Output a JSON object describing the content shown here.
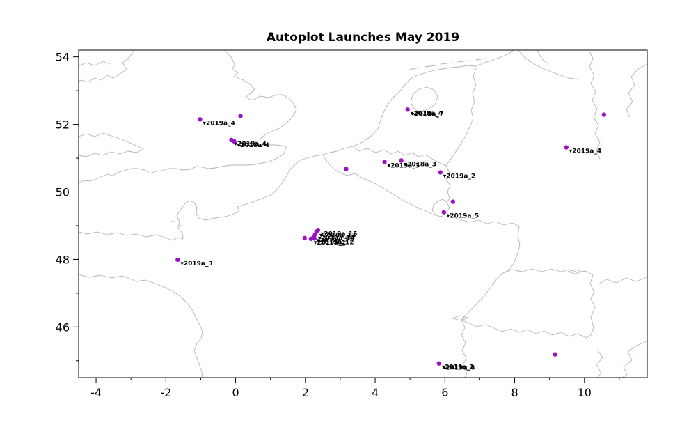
{
  "title": "Autoplot Launches May 2019",
  "colors": {
    "background": "#ffffff",
    "marker": "#9912c4",
    "coastline": "#b3b3b3",
    "axis": "#000000",
    "point_label_text": "#000000"
  },
  "icons": {
    "label_pointer": "▾"
  },
  "chart_data": {
    "type": "scatter",
    "title": "Autoplot Launches May 2019",
    "xlabel": "",
    "ylabel": "",
    "xlim": [
      -4.5,
      11.8
    ],
    "ylim": [
      44.5,
      54.2
    ],
    "x_ticks_major": [
      -4,
      -2,
      0,
      2,
      4,
      6,
      8,
      10
    ],
    "x_ticks_minor": [
      -3,
      -1,
      1,
      3,
      5,
      7,
      9,
      11
    ],
    "y_ticks_major": [
      46,
      48,
      50,
      52,
      54
    ],
    "y_ticks_minor": [
      45,
      47,
      49,
      51,
      53
    ],
    "grid": false,
    "legend": null,
    "background_map": "Western Europe coastlines and borders (UK, France, Belgium, Netherlands, Germany, Switzerland)",
    "marker": {
      "shape": "circle",
      "color": "#9912c4",
      "radius": 3.2
    },
    "points": [
      {
        "lon": -1.02,
        "lat": 52.15,
        "labels": [
          "2019a_4"
        ]
      },
      {
        "lon": 0.14,
        "lat": 52.25,
        "labels": []
      },
      {
        "lon": -0.12,
        "lat": 51.54,
        "labels": [
          "2019a_4"
        ]
      },
      {
        "lon": -0.04,
        "lat": 51.5,
        "labels": [
          "2018a_4"
        ]
      },
      {
        "lon": 3.17,
        "lat": 50.68,
        "labels": []
      },
      {
        "lon": 4.27,
        "lat": 50.89,
        "labels": [
          "2019a_3"
        ]
      },
      {
        "lon": 4.75,
        "lat": 50.93,
        "labels": [
          "2018a_3"
        ]
      },
      {
        "lon": 5.87,
        "lat": 50.58,
        "labels": [
          "2019a_2"
        ]
      },
      {
        "lon": 6.23,
        "lat": 49.71,
        "labels": []
      },
      {
        "lon": 5.97,
        "lat": 49.4,
        "labels": [
          "2019a_5"
        ]
      },
      {
        "lon": 1.98,
        "lat": 48.63,
        "labels": []
      },
      {
        "lon": 2.16,
        "lat": 48.61,
        "labels": [
          "2019a_1"
        ]
      },
      {
        "lon": 2.26,
        "lat": 48.62,
        "labels": [
          "2019a_12"
        ]
      },
      {
        "lon": 2.24,
        "lat": 48.67,
        "labels": [
          "2019a_11"
        ]
      },
      {
        "lon": 2.28,
        "lat": 48.74,
        "labels": [
          "2019a_14"
        ]
      },
      {
        "lon": 2.32,
        "lat": 48.82,
        "labels": [
          "2019a_13"
        ]
      },
      {
        "lon": 2.36,
        "lat": 48.87,
        "labels": [
          "2019a_15"
        ]
      },
      {
        "lon": -1.66,
        "lat": 47.99,
        "labels": [
          "2019a_3"
        ]
      },
      {
        "lon": 4.93,
        "lat": 52.44,
        "labels": [
          "2018a_4",
          "2019a_7"
        ]
      },
      {
        "lon": 10.56,
        "lat": 52.29,
        "labels": []
      },
      {
        "lon": 9.48,
        "lat": 51.32,
        "labels": [
          "2019a_4"
        ]
      },
      {
        "lon": 9.16,
        "lat": 45.19,
        "labels": []
      },
      {
        "lon": 5.83,
        "lat": 44.92,
        "labels": [
          "2019a_2",
          "2019a_8"
        ]
      }
    ]
  }
}
